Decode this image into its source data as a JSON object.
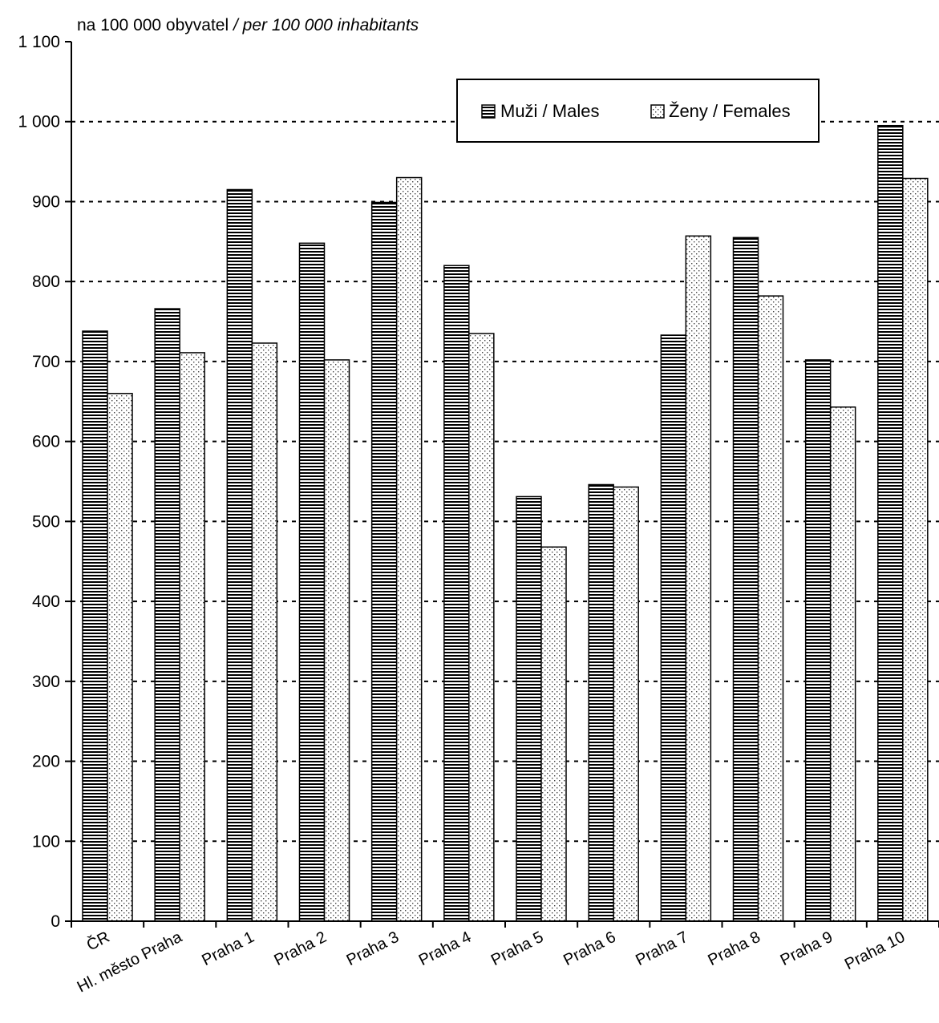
{
  "chart_data": {
    "type": "bar",
    "unit_label": "na 100 000 obyvatel",
    "unit_label_en": "/ per 100 000 inhabitants",
    "categories": [
      "ČR",
      "Hl. město Praha",
      "Praha 1",
      "Praha 2",
      "Praha 3",
      "Praha 4",
      "Praha 5",
      "Praha 6",
      "Praha 7",
      "Praha 8",
      "Praha 9",
      "Praha 10"
    ],
    "series": [
      {
        "name": "Muži / Males",
        "pattern": "horizontal-stripes",
        "values": [
          738,
          766,
          915,
          848,
          899,
          820,
          531,
          546,
          733,
          855,
          702,
          995
        ]
      },
      {
        "name": "Ženy / Females",
        "pattern": "dots",
        "values": [
          660,
          711,
          723,
          702,
          930,
          735,
          468,
          543,
          857,
          782,
          643,
          929
        ]
      }
    ],
    "ylim": [
      0,
      1100
    ],
    "yticks": [
      0,
      100,
      200,
      300,
      400,
      500,
      600,
      700,
      800,
      900,
      1000,
      1100
    ],
    "ytick_labels": [
      "0",
      "100",
      "200",
      "300",
      "400",
      "500",
      "600",
      "700",
      "800",
      "900",
      "1 000",
      "1 100"
    ],
    "grid": "horizontal-dotted",
    "legend_position": "top-right",
    "colors": {
      "bar_fill": "#ffffff",
      "stroke": "#000000"
    }
  }
}
